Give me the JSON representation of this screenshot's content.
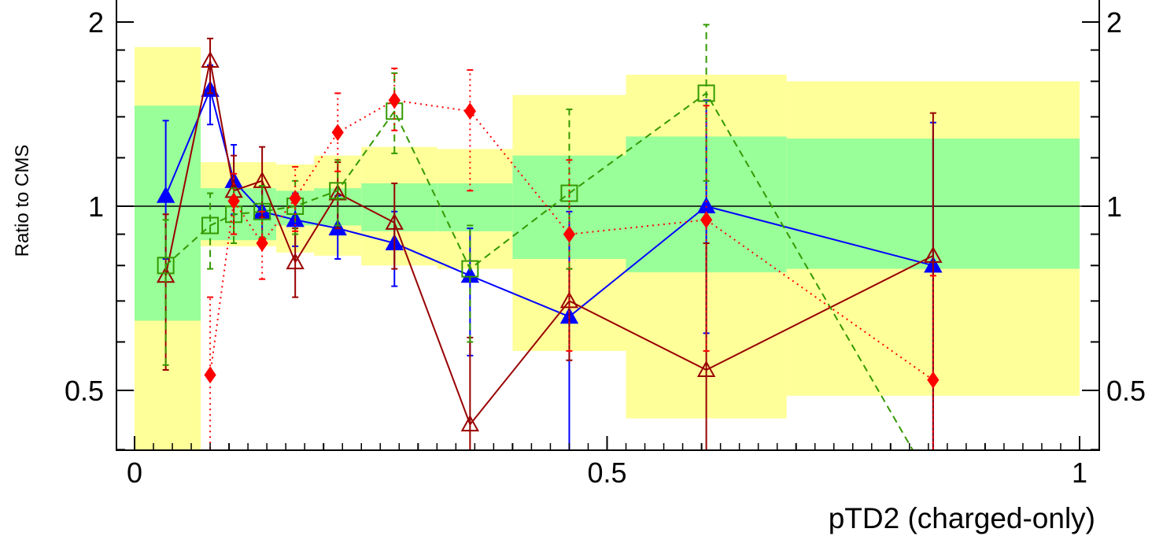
{
  "chart_data": {
    "type": "scatter",
    "xlabel": "pTD2 (charged-only)",
    "ylabel": "Ratio to CMS",
    "xlim": [
      0,
      1
    ],
    "ylim": [
      0.34,
      2.2
    ],
    "ylog": true,
    "x_ticks": [
      {
        "v": 0,
        "label": "0"
      },
      {
        "v": 0.5,
        "label": "0.5"
      },
      {
        "v": 1,
        "label": "1"
      }
    ],
    "y_ticks": [
      {
        "v": 0.5,
        "label": "0.5"
      },
      {
        "v": 1,
        "label": "1"
      },
      {
        "v": 2,
        "label": "2"
      }
    ],
    "reference_line": 1,
    "bands": [
      {
        "x0": 0.0,
        "x1": 0.07,
        "inner": [
          0.65,
          1.46
        ],
        "outer": [
          0.3,
          1.82
        ]
      },
      {
        "x0": 0.07,
        "x1": 0.15,
        "inner": [
          0.88,
          1.07
        ],
        "outer": [
          0.86,
          1.18
        ]
      },
      {
        "x0": 0.15,
        "x1": 0.19,
        "inner": [
          0.93,
          1.06
        ],
        "outer": [
          0.84,
          1.17
        ]
      },
      {
        "x0": 0.19,
        "x1": 0.24,
        "inner": [
          0.93,
          1.07
        ],
        "outer": [
          0.83,
          1.21
        ]
      },
      {
        "x0": 0.24,
        "x1": 0.32,
        "inner": [
          0.91,
          1.09
        ],
        "outer": [
          0.8,
          1.25
        ]
      },
      {
        "x0": 0.32,
        "x1": 0.4,
        "inner": [
          0.91,
          1.09
        ],
        "outer": [
          0.79,
          1.24
        ]
      },
      {
        "x0": 0.4,
        "x1": 0.52,
        "inner": [
          0.82,
          1.21
        ],
        "outer": [
          0.58,
          1.52
        ]
      },
      {
        "x0": 0.52,
        "x1": 0.69,
        "inner": [
          0.78,
          1.3
        ],
        "outer": [
          0.45,
          1.64
        ]
      },
      {
        "x0": 0.69,
        "x1": 1.0,
        "inner": [
          0.79,
          1.29
        ],
        "outer": [
          0.49,
          1.6
        ]
      }
    ],
    "colors": {
      "inner_band": "#99ff99",
      "outer_band": "#ffff99"
    },
    "series": [
      {
        "color": "#0000ff",
        "marker": "triangle-filled",
        "line": "solid",
        "points": [
          {
            "x": 0.033,
            "y": 1.04,
            "lo": 0.82,
            "hi": 1.38
          },
          {
            "x": 0.08,
            "y": 1.55,
            "lo": 1.36,
            "hi": 1.7
          },
          {
            "x": 0.105,
            "y": 1.1,
            "lo": 0.97,
            "hi": 1.26
          },
          {
            "x": 0.135,
            "y": 0.98,
            "lo": 0.88,
            "hi": 1.08
          },
          {
            "x": 0.17,
            "y": 0.95,
            "lo": 0.86,
            "hi": 1.05
          },
          {
            "x": 0.215,
            "y": 0.92,
            "lo": 0.82,
            "hi": 1.04
          },
          {
            "x": 0.275,
            "y": 0.87,
            "lo": 0.74,
            "hi": 0.98
          },
          {
            "x": 0.355,
            "y": 0.77,
            "lo": 0.57,
            "hi": 0.92
          },
          {
            "x": 0.46,
            "y": 0.66,
            "lo": 0.35,
            "hi": 0.98
          },
          {
            "x": 0.605,
            "y": 1.0,
            "lo": 0.62,
            "hi": 1.49
          },
          {
            "x": 0.845,
            "y": 0.8,
            "lo": 0.34,
            "hi": 1.37
          }
        ]
      },
      {
        "color": "#990000",
        "marker": "triangle-open",
        "line": "solid",
        "points": [
          {
            "x": 0.033,
            "y": 0.77,
            "lo": 0.54,
            "hi": 0.97
          },
          {
            "x": 0.08,
            "y": 1.73,
            "lo": 1.53,
            "hi": 1.88
          },
          {
            "x": 0.105,
            "y": 1.06,
            "lo": 0.9,
            "hi": 1.21
          },
          {
            "x": 0.135,
            "y": 1.1,
            "lo": 0.96,
            "hi": 1.25
          },
          {
            "x": 0.17,
            "y": 0.81,
            "lo": 0.71,
            "hi": 0.92
          },
          {
            "x": 0.215,
            "y": 1.05,
            "lo": 0.92,
            "hi": 1.18
          },
          {
            "x": 0.275,
            "y": 0.94,
            "lo": 0.79,
            "hi": 1.09
          },
          {
            "x": 0.355,
            "y": 0.44,
            "lo": 0.34,
            "hi": 0.61
          },
          {
            "x": 0.46,
            "y": 0.7,
            "lo": 0.56,
            "hi": 0.79
          },
          {
            "x": 0.605,
            "y": 0.54,
            "lo": 0.34,
            "hi": 0.87
          },
          {
            "x": 0.845,
            "y": 0.83,
            "lo": 0.34,
            "hi": 1.42
          }
        ]
      },
      {
        "color": "#339900",
        "marker": "square-open",
        "line": "dashed",
        "points": [
          {
            "x": 0.033,
            "y": 0.8,
            "lo": 0.55,
            "hi": 0.95
          },
          {
            "x": 0.08,
            "y": 0.93,
            "lo": 0.79,
            "hi": 1.05
          },
          {
            "x": 0.105,
            "y": 0.97,
            "lo": 0.87,
            "hi": 1.07
          },
          {
            "x": 0.135,
            "y": 0.98,
            "lo": 0.89,
            "hi": 1.08
          },
          {
            "x": 0.17,
            "y": 1.0,
            "lo": 0.9,
            "hi": 1.1
          },
          {
            "x": 0.215,
            "y": 1.06,
            "lo": 0.93,
            "hi": 1.19
          },
          {
            "x": 0.275,
            "y": 1.43,
            "lo": 1.22,
            "hi": 1.65
          },
          {
            "x": 0.355,
            "y": 0.79,
            "lo": 0.6,
            "hi": 0.93
          },
          {
            "x": 0.46,
            "y": 1.05,
            "lo": 0.79,
            "hi": 1.44
          },
          {
            "x": 0.605,
            "y": 1.53,
            "lo": 1.1,
            "hi": 1.98
          },
          {
            "x": 0.845,
            "y": 0.35,
            "lo": 0.34,
            "hi": 0.36
          }
        ]
      },
      {
        "color": "#ff0000",
        "marker": "diamond-filled",
        "line": "dotted",
        "points": [
          {
            "x": 0.08,
            "y": 0.53,
            "lo": 0.34,
            "hi": 0.71
          },
          {
            "x": 0.105,
            "y": 1.02,
            "lo": 0.9,
            "hi": 1.13
          },
          {
            "x": 0.135,
            "y": 0.87,
            "lo": 0.76,
            "hi": 0.98
          },
          {
            "x": 0.17,
            "y": 1.03,
            "lo": 0.91,
            "hi": 1.16
          },
          {
            "x": 0.215,
            "y": 1.32,
            "lo": 1.14,
            "hi": 1.53
          },
          {
            "x": 0.275,
            "y": 1.49,
            "lo": 1.33,
            "hi": 1.68
          },
          {
            "x": 0.355,
            "y": 1.43,
            "lo": 1.06,
            "hi": 1.67
          },
          {
            "x": 0.46,
            "y": 0.9,
            "lo": 0.58,
            "hi": 1.19
          },
          {
            "x": 0.605,
            "y": 0.95,
            "lo": 0.58,
            "hi": 1.46
          },
          {
            "x": 0.845,
            "y": 0.52,
            "lo": 0.34,
            "hi": 0.77
          }
        ]
      }
    ]
  }
}
